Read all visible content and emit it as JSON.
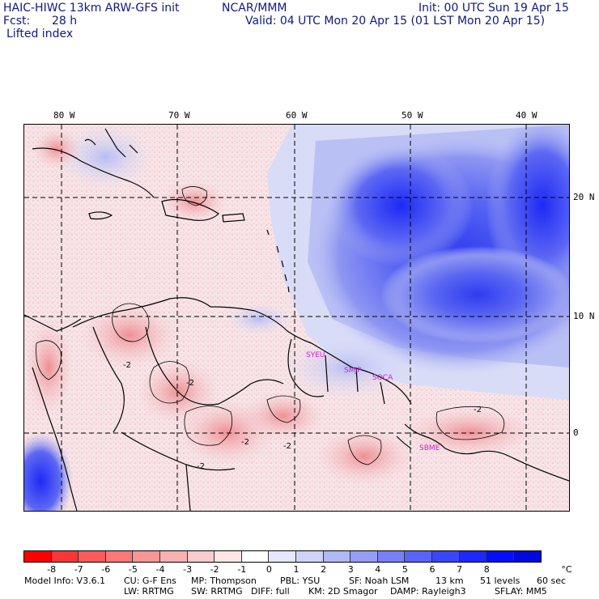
{
  "header": {
    "model_title": "HAIC-HIWC 13km ARW-GFS init",
    "org": "NCAR/MMM",
    "init": "Init: 00 UTC Sun 19 Apr 15",
    "fcst_label": "Fcst:",
    "fcst_value": "28 h",
    "valid": "Valid: 04 UTC Mon 20 Apr 15 (01 LST Mon 20 Apr 15)",
    "field": "Lifted index"
  },
  "map": {
    "lon_labels": [
      "80 W",
      "70 W",
      "60 W",
      "50 W",
      "40 W"
    ],
    "lat_labels": [
      "20 N",
      "10 N",
      "0"
    ],
    "station_labels": [
      "SYEU",
      "SMJP",
      "SOCA",
      "SBME"
    ],
    "contour_labels": [
      "-2",
      "-2",
      "-2",
      "-2",
      "-2",
      "-2"
    ]
  },
  "colorbar": {
    "colors": [
      "#ff0000",
      "#ff3535",
      "#ff5959",
      "#ff7777",
      "#f99595",
      "#f7b1b1",
      "#f9cccc",
      "#fbe5e5",
      "#ffffff",
      "#e5e8fb",
      "#cfd4f7",
      "#b0b8f5",
      "#959ef7",
      "#7780f9",
      "#5963fb",
      "#3b45fd",
      "#1d27ff",
      "#0010ff",
      "#0008e0"
    ],
    "labels": [
      "-8",
      "-7",
      "-6",
      "-5",
      "-4",
      "-3",
      "-2",
      "-1",
      "0",
      "1",
      "2",
      "3",
      "4",
      "5",
      "6",
      "7",
      "8"
    ],
    "unit": "°C"
  },
  "footer": {
    "line1": [
      "Model Info: V3.6.1",
      "CU: G-F Ens",
      "MP: Thompson",
      "PBL: YSU",
      "SF: Noah LSM",
      "13 km",
      "51 levels",
      "60 sec"
    ],
    "line2": [
      "LW: RRTMG",
      "SW: RRTMG",
      "DIFF: full",
      "KM: 2D Smagor",
      "DAMP: Rayleigh3",
      "SFLAY: MM5"
    ]
  }
}
